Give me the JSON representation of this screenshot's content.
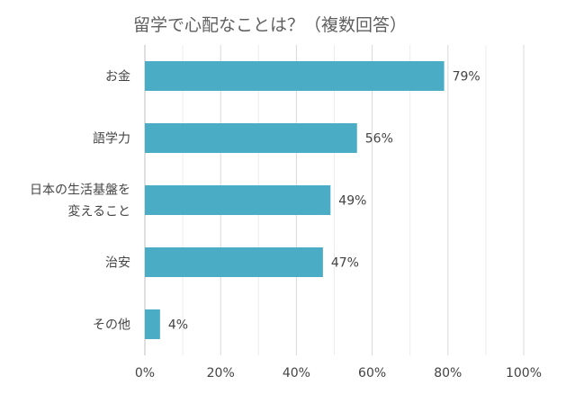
{
  "chart_data": {
    "type": "bar",
    "orientation": "horizontal",
    "title": "留学で心配なことは？（複数回答）",
    "categories": [
      [
        "お金"
      ],
      [
        "語学力"
      ],
      [
        "日本の生活基盤を",
        "変えること"
      ],
      [
        "治安"
      ],
      [
        "その他"
      ]
    ],
    "values": [
      79,
      56,
      49,
      47,
      4
    ],
    "data_labels": [
      "79%",
      "56%",
      "49%",
      "47%",
      "4%"
    ],
    "x_ticks": [
      "0%",
      "20%",
      "40%",
      "60%",
      "80%",
      "100%"
    ],
    "xlim": [
      0,
      100
    ],
    "grid": true,
    "bar_color": "#4bacc6",
    "xlabel": "",
    "ylabel": ""
  }
}
